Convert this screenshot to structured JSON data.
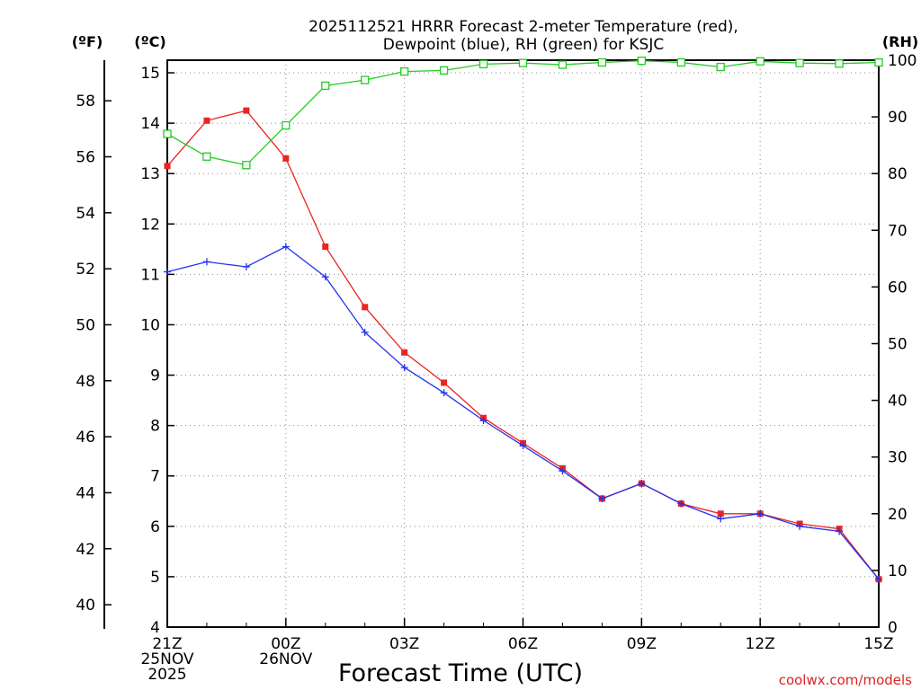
{
  "chart_data": {
    "type": "line",
    "title_line1": "2025112521 HRRR Forecast 2-meter Temperature (red),",
    "title_line2": "Dewpoint (blue), RH (green) for KSJC",
    "xlabel": "Forecast Time (UTC)",
    "credit": "coolwx.com/models",
    "left_outer_unit": "(ºF)",
    "left_inner_unit": "(ºC)",
    "right_unit": "(RH)",
    "forecast_hours": [
      0,
      1,
      2,
      3,
      4,
      5,
      6,
      7,
      8,
      9,
      10,
      11,
      12,
      13,
      14,
      15,
      16,
      17,
      18
    ],
    "x_ticks": [
      {
        "hour": 0,
        "lines": [
          "21Z",
          "25NOV",
          "2025"
        ]
      },
      {
        "hour": 3,
        "lines": [
          "00Z",
          "26NOV"
        ]
      },
      {
        "hour": 6,
        "lines": [
          "03Z"
        ]
      },
      {
        "hour": 9,
        "lines": [
          "06Z"
        ]
      },
      {
        "hour": 12,
        "lines": [
          "09Z"
        ]
      },
      {
        "hour": 15,
        "lines": [
          "12Z"
        ]
      },
      {
        "hour": 18,
        "lines": [
          "15Z"
        ]
      }
    ],
    "ylim_c": [
      4,
      15.25
    ],
    "yticks_c": [
      4,
      5,
      6,
      7,
      8,
      9,
      10,
      11,
      12,
      13,
      14,
      15
    ],
    "yticks_f": [
      40,
      42,
      44,
      46,
      48,
      50,
      52,
      54,
      56,
      58
    ],
    "ylim_rh": [
      0,
      100
    ],
    "yticks_rh": [
      0,
      10,
      20,
      30,
      40,
      50,
      60,
      70,
      80,
      90,
      100
    ],
    "series": [
      {
        "name": "Temperature",
        "unit": "C",
        "color": "#ee2222",
        "marker": "filled-square",
        "values": [
          13.15,
          14.05,
          14.25,
          13.3,
          11.55,
          10.35,
          9.45,
          8.85,
          8.15,
          7.65,
          7.15,
          6.55,
          6.85,
          6.45,
          6.25,
          6.25,
          6.05,
          5.95,
          4.95
        ]
      },
      {
        "name": "Dewpoint",
        "unit": "C",
        "color": "#2233ee",
        "marker": "plus",
        "values": [
          11.05,
          11.25,
          11.15,
          11.55,
          10.95,
          9.85,
          9.15,
          8.65,
          8.1,
          7.6,
          7.1,
          6.55,
          6.85,
          6.45,
          6.15,
          6.25,
          6.0,
          5.9,
          4.95
        ]
      },
      {
        "name": "RH",
        "unit": "%",
        "color": "#22cc22",
        "marker": "open-square",
        "values": [
          87,
          83,
          81.5,
          88.5,
          95.5,
          96.5,
          98,
          98.2,
          99.3,
          99.5,
          99.2,
          99.6,
          99.9,
          99.6,
          98.8,
          99.8,
          99.5,
          99.4,
          99.6
        ]
      }
    ]
  }
}
